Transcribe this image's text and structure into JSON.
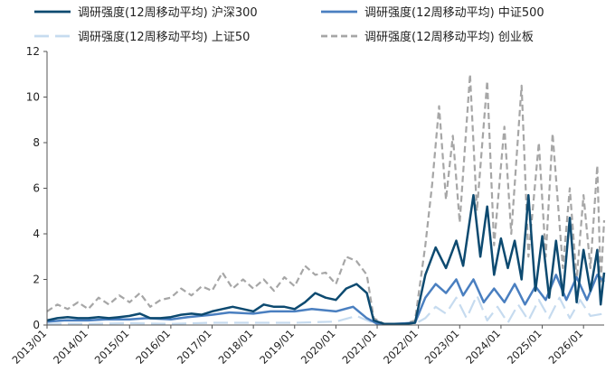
{
  "chart_data": {
    "type": "line",
    "title": "",
    "xlabel": "",
    "ylabel": "",
    "ylim": [
      0,
      12
    ],
    "yticks": [
      0,
      2,
      4,
      6,
      8,
      10,
      12
    ],
    "xlim": [
      "2013-01",
      "2026-07"
    ],
    "x_tick_labels": [
      "2013/01",
      "2014/01",
      "2015/01",
      "2016/01",
      "2017/01",
      "2018/01",
      "2019/01",
      "2020/01",
      "2021/01",
      "2022/01",
      "2023/01",
      "2024/01",
      "2025/01",
      "2026/01"
    ],
    "grid": false,
    "legend_position": "top",
    "series": [
      {
        "name": "调研强度(12周移动平均) 沪深300",
        "color": "#0d4a70",
        "dash": "solid",
        "points": [
          [
            "2013-01",
            0.2
          ],
          [
            "2013-04",
            0.3
          ],
          [
            "2013-07",
            0.35
          ],
          [
            "2013-10",
            0.3
          ],
          [
            "2014-01",
            0.3
          ],
          [
            "2014-04",
            0.35
          ],
          [
            "2014-07",
            0.3
          ],
          [
            "2014-10",
            0.35
          ],
          [
            "2015-01",
            0.4
          ],
          [
            "2015-04",
            0.5
          ],
          [
            "2015-07",
            0.3
          ],
          [
            "2015-10",
            0.3
          ],
          [
            "2016-01",
            0.35
          ],
          [
            "2016-04",
            0.45
          ],
          [
            "2016-07",
            0.5
          ],
          [
            "2016-10",
            0.45
          ],
          [
            "2017-01",
            0.6
          ],
          [
            "2017-04",
            0.7
          ],
          [
            "2017-07",
            0.8
          ],
          [
            "2017-10",
            0.7
          ],
          [
            "2018-01",
            0.6
          ],
          [
            "2018-04",
            0.9
          ],
          [
            "2018-07",
            0.8
          ],
          [
            "2018-10",
            0.8
          ],
          [
            "2019-01",
            0.7
          ],
          [
            "2019-04",
            1.0
          ],
          [
            "2019-07",
            1.4
          ],
          [
            "2019-10",
            1.2
          ],
          [
            "2020-01",
            1.1
          ],
          [
            "2020-04",
            1.6
          ],
          [
            "2020-07",
            1.8
          ],
          [
            "2020-10",
            1.4
          ],
          [
            "2020-12",
            0.2
          ],
          [
            "2021-03",
            0.05
          ],
          [
            "2021-06",
            0.05
          ],
          [
            "2021-09",
            0.05
          ],
          [
            "2021-12",
            0.1
          ],
          [
            "2022-03",
            2.2
          ],
          [
            "2022-06",
            3.4
          ],
          [
            "2022-09",
            2.5
          ],
          [
            "2022-12",
            3.7
          ],
          [
            "2023-02",
            2.6
          ],
          [
            "2023-05",
            5.7
          ],
          [
            "2023-07",
            3.0
          ],
          [
            "2023-09",
            5.2
          ],
          [
            "2023-11",
            2.2
          ],
          [
            "2024-01",
            3.8
          ],
          [
            "2024-03",
            2.5
          ],
          [
            "2024-05",
            3.7
          ],
          [
            "2024-07",
            2.0
          ],
          [
            "2024-09",
            5.7
          ],
          [
            "2024-11",
            1.5
          ],
          [
            "2025-01",
            3.9
          ],
          [
            "2025-03",
            1.2
          ],
          [
            "2025-05",
            3.7
          ],
          [
            "2025-07",
            1.3
          ],
          [
            "2025-09",
            4.7
          ],
          [
            "2025-11",
            1.0
          ],
          [
            "2026-01",
            3.3
          ],
          [
            "2026-03",
            1.5
          ],
          [
            "2026-05",
            3.3
          ],
          [
            "2026-06",
            0.9
          ],
          [
            "2026-07",
            2.3
          ]
        ]
      },
      {
        "name": "调研强度(12周移动平均) 中证500",
        "color": "#4a7fc0",
        "dash": "solid",
        "points": [
          [
            "2013-01",
            0.15
          ],
          [
            "2013-06",
            0.2
          ],
          [
            "2014-01",
            0.2
          ],
          [
            "2014-06",
            0.25
          ],
          [
            "2015-01",
            0.25
          ],
          [
            "2015-06",
            0.3
          ],
          [
            "2016-01",
            0.25
          ],
          [
            "2016-06",
            0.35
          ],
          [
            "2017-01",
            0.45
          ],
          [
            "2017-06",
            0.55
          ],
          [
            "2018-01",
            0.5
          ],
          [
            "2018-06",
            0.6
          ],
          [
            "2019-01",
            0.6
          ],
          [
            "2019-06",
            0.7
          ],
          [
            "2020-01",
            0.6
          ],
          [
            "2020-06",
            0.8
          ],
          [
            "2020-10",
            0.3
          ],
          [
            "2021-01",
            0.05
          ],
          [
            "2021-06",
            0.05
          ],
          [
            "2021-12",
            0.1
          ],
          [
            "2022-03",
            1.2
          ],
          [
            "2022-06",
            1.8
          ],
          [
            "2022-09",
            1.4
          ],
          [
            "2022-12",
            2.0
          ],
          [
            "2023-02",
            1.3
          ],
          [
            "2023-05",
            2.0
          ],
          [
            "2023-08",
            1.0
          ],
          [
            "2023-11",
            1.6
          ],
          [
            "2024-02",
            1.0
          ],
          [
            "2024-05",
            1.8
          ],
          [
            "2024-08",
            0.9
          ],
          [
            "2024-11",
            1.7
          ],
          [
            "2025-02",
            1.1
          ],
          [
            "2025-05",
            2.2
          ],
          [
            "2025-08",
            1.1
          ],
          [
            "2025-11",
            2.1
          ],
          [
            "2026-02",
            1.1
          ],
          [
            "2026-05",
            2.2
          ],
          [
            "2026-07",
            1.9
          ]
        ]
      },
      {
        "name": "调研强度(12周移动平均) 上证50",
        "color": "#c6dbef",
        "dash": "long-dash",
        "points": [
          [
            "2013-01",
            0.05
          ],
          [
            "2014-01",
            0.05
          ],
          [
            "2015-01",
            0.08
          ],
          [
            "2016-01",
            0.05
          ],
          [
            "2017-01",
            0.1
          ],
          [
            "2018-01",
            0.1
          ],
          [
            "2019-01",
            0.1
          ],
          [
            "2020-01",
            0.15
          ],
          [
            "2020-07",
            0.4
          ],
          [
            "2021-01",
            0.02
          ],
          [
            "2021-12",
            0.05
          ],
          [
            "2022-03",
            0.3
          ],
          [
            "2022-06",
            0.8
          ],
          [
            "2022-09",
            0.5
          ],
          [
            "2022-12",
            1.2
          ],
          [
            "2023-03",
            0.3
          ],
          [
            "2023-06",
            1.3
          ],
          [
            "2023-09",
            0.2
          ],
          [
            "2023-12",
            0.8
          ],
          [
            "2024-03",
            0.1
          ],
          [
            "2024-06",
            0.9
          ],
          [
            "2024-09",
            0.2
          ],
          [
            "2024-12",
            1.1
          ],
          [
            "2025-03",
            0.3
          ],
          [
            "2025-06",
            1.2
          ],
          [
            "2025-09",
            0.3
          ],
          [
            "2025-12",
            1.1
          ],
          [
            "2026-03",
            0.4
          ],
          [
            "2026-07",
            0.5
          ]
        ]
      },
      {
        "name": "调研强度(12周移动平均) 创业板",
        "color": "#a6a6a6",
        "dash": "dash",
        "points": [
          [
            "2013-01",
            0.6
          ],
          [
            "2013-04",
            0.9
          ],
          [
            "2013-07",
            0.7
          ],
          [
            "2013-10",
            1.0
          ],
          [
            "2014-01",
            0.7
          ],
          [
            "2014-04",
            1.2
          ],
          [
            "2014-07",
            0.9
          ],
          [
            "2014-10",
            1.3
          ],
          [
            "2015-01",
            1.0
          ],
          [
            "2015-04",
            1.4
          ],
          [
            "2015-07",
            0.8
          ],
          [
            "2015-10",
            1.1
          ],
          [
            "2016-01",
            1.2
          ],
          [
            "2016-04",
            1.6
          ],
          [
            "2016-07",
            1.3
          ],
          [
            "2016-10",
            1.7
          ],
          [
            "2017-01",
            1.5
          ],
          [
            "2017-04",
            2.3
          ],
          [
            "2017-07",
            1.6
          ],
          [
            "2017-10",
            2.0
          ],
          [
            "2018-01",
            1.6
          ],
          [
            "2018-04",
            2.0
          ],
          [
            "2018-07",
            1.5
          ],
          [
            "2018-10",
            2.1
          ],
          [
            "2019-01",
            1.7
          ],
          [
            "2019-04",
            2.6
          ],
          [
            "2019-07",
            2.2
          ],
          [
            "2019-10",
            2.3
          ],
          [
            "2020-01",
            1.8
          ],
          [
            "2020-04",
            3.0
          ],
          [
            "2020-07",
            2.8
          ],
          [
            "2020-10",
            2.2
          ],
          [
            "2020-12",
            0.3
          ],
          [
            "2021-03",
            0.05
          ],
          [
            "2021-06",
            0.05
          ],
          [
            "2021-09",
            0.05
          ],
          [
            "2021-12",
            0.2
          ],
          [
            "2022-03",
            3.5
          ],
          [
            "2022-05",
            6.2
          ],
          [
            "2022-07",
            9.6
          ],
          [
            "2022-09",
            5.5
          ],
          [
            "2022-11",
            8.3
          ],
          [
            "2023-01",
            4.5
          ],
          [
            "2023-04",
            11.0
          ],
          [
            "2023-06",
            5.0
          ],
          [
            "2023-09",
            10.7
          ],
          [
            "2023-11",
            3.5
          ],
          [
            "2024-02",
            8.7
          ],
          [
            "2024-04",
            4.0
          ],
          [
            "2024-07",
            10.5
          ],
          [
            "2024-09",
            3.0
          ],
          [
            "2024-12",
            8.0
          ],
          [
            "2025-02",
            3.0
          ],
          [
            "2025-04",
            8.4
          ],
          [
            "2025-07",
            2.5
          ],
          [
            "2025-09",
            6.0
          ],
          [
            "2025-11",
            2.0
          ],
          [
            "2026-01",
            5.7
          ],
          [
            "2026-03",
            2.5
          ],
          [
            "2026-05",
            7.0
          ],
          [
            "2026-06",
            1.8
          ],
          [
            "2026-07",
            4.6
          ]
        ]
      }
    ]
  }
}
